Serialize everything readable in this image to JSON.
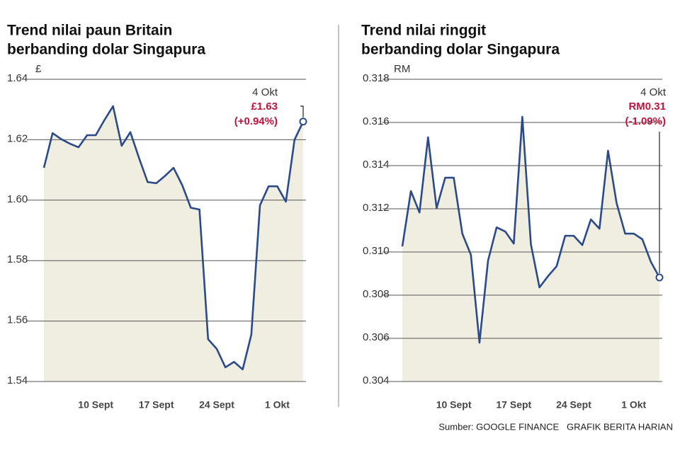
{
  "chart_data": [
    {
      "type": "area-line",
      "title": [
        "Trend nilai paun Britain",
        "berbanding dolar Singapura"
      ],
      "unit_label": "£",
      "categories": [
        null,
        null,
        null,
        null,
        null,
        null,
        "10 Sept",
        null,
        null,
        null,
        null,
        null,
        null,
        "17 Sept",
        null,
        null,
        null,
        null,
        null,
        null,
        "24 Sept",
        null,
        null,
        null,
        null,
        null,
        null,
        "1 Okt",
        null,
        null,
        null
      ],
      "values": [
        1.6107,
        1.6222,
        1.6202,
        1.6187,
        1.6175,
        1.6215,
        1.6215,
        1.6265,
        1.6311,
        1.618,
        1.6225,
        1.614,
        1.606,
        1.6056,
        1.608,
        1.6107,
        1.605,
        1.5975,
        1.5969,
        1.554,
        1.5508,
        1.5447,
        1.5465,
        1.544,
        1.5555,
        1.5983,
        1.6046,
        1.6046,
        1.5995,
        1.62,
        1.626
      ],
      "color": "#2b4a8a",
      "fill": "#efeee1",
      "ylim": [
        1.54,
        1.64
      ],
      "yticks": [
        1.54,
        1.56,
        1.58,
        {
          "value": 1.6,
          "label": "1.60"
        },
        1.62,
        1.64
      ],
      "grid": true,
      "annotation": {
        "date": "4 Okt",
        "value": "£1.63",
        "change": "(+0.94%)"
      }
    },
    {
      "type": "area-line",
      "title": [
        "Trend nilai ringgit",
        "berbanding dolar Singapura"
      ],
      "unit_label": "RM",
      "categories": [
        null,
        null,
        null,
        null,
        null,
        null,
        "10 Sept",
        null,
        null,
        null,
        null,
        null,
        null,
        "17 Sept",
        null,
        null,
        null,
        null,
        null,
        null,
        "24 Sept",
        null,
        null,
        null,
        null,
        null,
        null,
        "1 Okt",
        null,
        null,
        null
      ],
      "values": [
        0.31026,
        0.31282,
        0.31183,
        0.31531,
        0.31203,
        0.31344,
        0.31344,
        0.31085,
        0.30987,
        0.3058,
        0.3096,
        0.31114,
        0.31095,
        0.31039,
        0.31626,
        0.31036,
        0.30836,
        0.30888,
        0.30934,
        0.31075,
        0.31075,
        0.31032,
        0.31151,
        0.31108,
        0.31469,
        0.31226,
        0.31085,
        0.31085,
        0.31059,
        0.30954,
        0.30882
      ],
      "color": "#2b4a8a",
      "fill": "#efeee1",
      "ylim": [
        0.304,
        0.318
      ],
      "yticks": [
        0.304,
        0.306,
        0.308,
        {
          "value": 0.31,
          "label": "0.310"
        },
        0.312,
        0.314,
        0.316,
        0.318
      ],
      "grid": true,
      "annotation": {
        "date": "4 Okt",
        "value": "RM0.31",
        "change": "(-1.09%)"
      }
    }
  ],
  "source": "Sumber: GOOGLE FINANCE   GRAFIK BERITA HARIAN"
}
